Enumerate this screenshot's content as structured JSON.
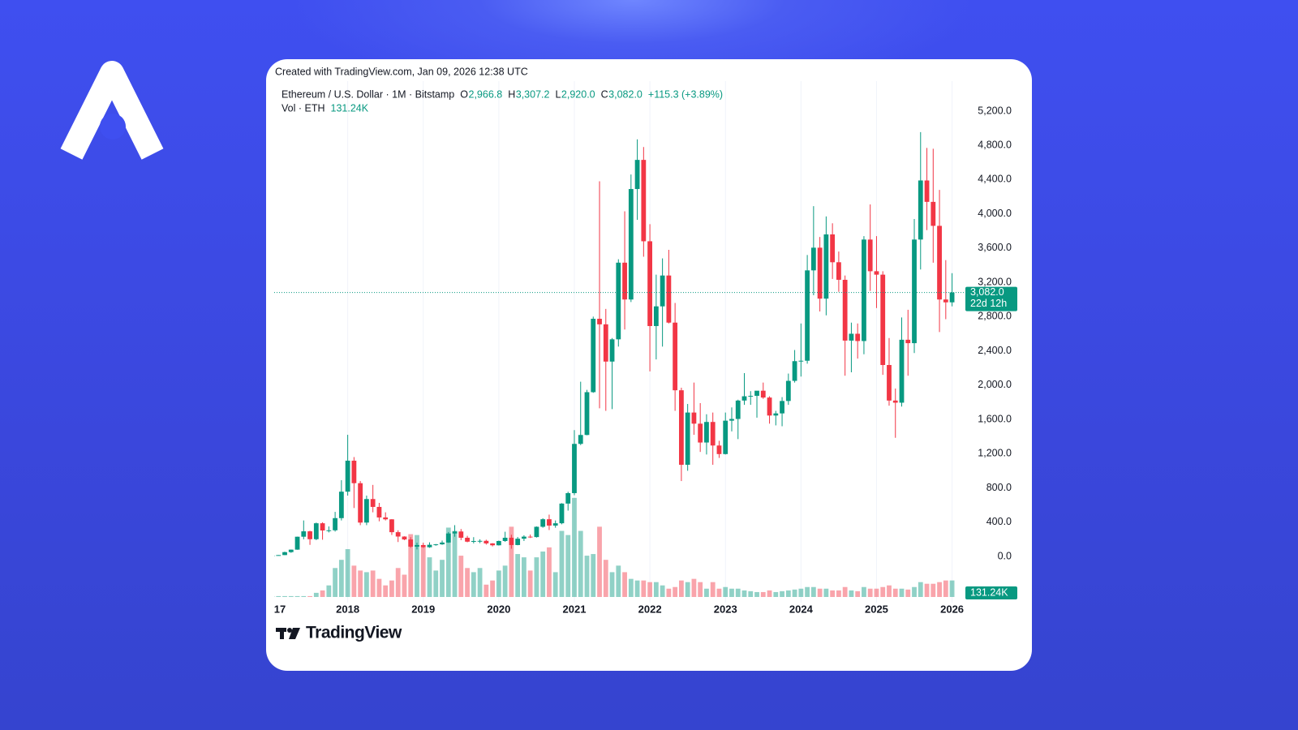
{
  "created_with": "Created with TradingView.com, Jan 09, 2026 12:38 UTC",
  "brand": "TradingView",
  "chart_data": {
    "type": "candlestick",
    "title": "Ethereum / U.S. Dollar · 1M · Bitstamp",
    "ohlc_keys": [
      "O",
      "H",
      "L",
      "C"
    ],
    "last_candle_labels": [
      "2,966.8",
      "3,307.2",
      "2,920.0",
      "3,082.0"
    ],
    "change_label": "+115.3 (+3.89%)",
    "volume_title": "Vol · ETH",
    "last_volume_label": "131.24K",
    "countdown": "22d 12h",
    "up_color": "#089981",
    "down_color": "#f23645",
    "grid": true,
    "categories": [
      "17",
      null,
      null,
      null,
      null,
      null,
      null,
      null,
      null,
      null,
      null,
      null,
      "2018",
      null,
      null,
      null,
      null,
      null,
      null,
      null,
      null,
      null,
      null,
      null,
      "2019",
      null,
      null,
      null,
      null,
      null,
      null,
      null,
      null,
      null,
      null,
      null,
      "2020",
      null,
      null,
      null,
      null,
      null,
      null,
      null,
      null,
      null,
      null,
      null,
      "2021",
      null,
      null,
      null,
      null,
      null,
      null,
      null,
      null,
      null,
      null,
      null,
      "2022",
      null,
      null,
      null,
      null,
      null,
      null,
      null,
      null,
      null,
      null,
      null,
      "2023",
      null,
      null,
      null,
      null,
      null,
      null,
      null,
      null,
      null,
      null,
      null,
      "2024",
      null,
      null,
      null,
      null,
      null,
      null,
      null,
      null,
      null,
      null,
      null,
      "2025",
      null,
      null,
      null,
      null,
      null,
      null,
      null,
      null,
      null,
      null,
      null,
      "2026"
    ],
    "open": [
      8,
      10.7,
      15.6,
      50,
      79,
      230,
      293,
      201,
      387,
      303,
      305,
      447,
      756,
      1118,
      855,
      395,
      670,
      578,
      455,
      433,
      283,
      232,
      198,
      114,
      133,
      107,
      136,
      141,
      162,
      268,
      291,
      218,
      172,
      180,
      182,
      152,
      130,
      180,
      218,
      133,
      207,
      231,
      226,
      346,
      434,
      360,
      387,
      617,
      739,
      1314,
      1418,
      1918,
      2775,
      2710,
      2275,
      2535,
      3430,
      3000,
      4290,
      4630,
      3680,
      2690,
      2920,
      3280,
      2730,
      1940,
      1070,
      1680,
      1550,
      1330,
      1570,
      1295,
      1195,
      1585,
      1605,
      1820,
      1870,
      1875,
      1935,
      1855,
      1645,
      1670,
      1815,
      2050,
      2280,
      2285,
      3340,
      3605,
      3010,
      3760,
      3435,
      3230,
      2520,
      2600,
      2515,
      3700,
      3330,
      3290,
      2235,
      1820,
      1795,
      2530,
      2490,
      3700,
      4390,
      4140,
      3860,
      3000,
      2966.8
    ],
    "high": [
      11,
      16,
      55,
      80,
      230,
      420,
      300,
      395,
      398,
      350,
      520,
      890,
      1420,
      1160,
      880,
      710,
      835,
      625,
      515,
      435,
      305,
      235,
      225,
      160,
      160,
      165,
      145,
      185,
      285,
      365,
      320,
      240,
      225,
      200,
      195,
      155,
      185,
      288,
      253,
      227,
      247,
      255,
      350,
      445,
      488,
      420,
      622,
      755,
      1475,
      2040,
      1945,
      2800,
      4380,
      2890,
      2550,
      3470,
      4030,
      4460,
      4870,
      4780,
      3880,
      3290,
      3480,
      3580,
      2960,
      1970,
      1780,
      2030,
      1790,
      1660,
      1680,
      1350,
      1680,
      1740,
      1830,
      2140,
      1930,
      1930,
      2030,
      1870,
      1700,
      1860,
      2135,
      2410,
      2720,
      3520,
      4090,
      3730,
      3970,
      3890,
      3560,
      3280,
      2730,
      2720,
      3740,
      4110,
      3740,
      3330,
      2550,
      1960,
      2790,
      2880,
      3940,
      4955,
      4770,
      4760,
      4280,
      3460,
      3307.2
    ],
    "low": [
      8,
      10.5,
      15,
      42,
      78,
      200,
      135,
      190,
      195,
      280,
      290,
      420,
      710,
      565,
      365,
      365,
      515,
      410,
      420,
      250,
      168,
      190,
      100,
      82,
      100,
      100,
      125,
      135,
      158,
      230,
      190,
      165,
      152,
      155,
      138,
      117,
      127,
      170,
      90,
      130,
      180,
      215,
      220,
      335,
      308,
      335,
      375,
      535,
      715,
      1300,
      1415,
      1910,
      1730,
      1700,
      1720,
      2450,
      2650,
      2970,
      3930,
      3500,
      2160,
      2300,
      2450,
      2720,
      1700,
      880,
      1000,
      1420,
      1220,
      1190,
      1070,
      1150,
      1190,
      1460,
      1370,
      1770,
      1770,
      1620,
      1840,
      1550,
      1530,
      1520,
      1770,
      2030,
      2100,
      2250,
      3050,
      2860,
      2815,
      3240,
      3090,
      2110,
      2150,
      2310,
      2360,
      3100,
      2900,
      2120,
      1760,
      1385,
      1750,
      2110,
      2375,
      3350,
      3810,
      3430,
      2620,
      2770,
      2920
    ],
    "close": [
      10.7,
      15.6,
      50,
      79,
      230,
      293,
      201,
      387,
      303,
      305,
      447,
      756,
      1118,
      855,
      395,
      670,
      578,
      455,
      433,
      283,
      232,
      198,
      114,
      133,
      107,
      136,
      141,
      162,
      268,
      291,
      218,
      172,
      180,
      182,
      152,
      130,
      180,
      218,
      133,
      207,
      231,
      226,
      346,
      434,
      360,
      387,
      617,
      739,
      1314,
      1418,
      1918,
      2775,
      2710,
      2275,
      2535,
      3430,
      3000,
      4290,
      4630,
      3680,
      2690,
      2920,
      3280,
      2730,
      1940,
      1070,
      1680,
      1550,
      1330,
      1570,
      1295,
      1195,
      1585,
      1605,
      1820,
      1870,
      1875,
      1935,
      1855,
      1645,
      1670,
      1815,
      2050,
      2280,
      2285,
      3340,
      3605,
      3010,
      3760,
      3435,
      3230,
      2520,
      2600,
      2515,
      3700,
      3330,
      3290,
      2235,
      1820,
      1795,
      2530,
      2490,
      3700,
      4390,
      4140,
      3860,
      3000,
      2966.8,
      3082
    ],
    "volume": [
      7000,
      7000,
      7000,
      7000,
      7000,
      7000,
      7000,
      33000,
      52000,
      92000,
      230000,
      295000,
      380000,
      249000,
      210000,
      197000,
      210000,
      144000,
      92000,
      131000,
      230000,
      177000,
      499000,
      492000,
      394000,
      315000,
      210000,
      295000,
      551000,
      525000,
      328000,
      230000,
      197000,
      230000,
      98000,
      131000,
      210000,
      249000,
      558000,
      341000,
      315000,
      210000,
      315000,
      361000,
      394000,
      197000,
      525000,
      492000,
      787000,
      525000,
      328000,
      341000,
      558000,
      295000,
      197000,
      249000,
      197000,
      144000,
      131000,
      131000,
      118000,
      118000,
      92000,
      66000,
      79000,
      131000,
      118000,
      144000,
      118000,
      66000,
      118000,
      66000,
      79000,
      66000,
      66000,
      52000,
      46000,
      39000,
      39000,
      52000,
      39000,
      46000,
      52000,
      59000,
      66000,
      79000,
      79000,
      66000,
      66000,
      52000,
      52000,
      79000,
      52000,
      46000,
      79000,
      66000,
      66000,
      79000,
      92000,
      66000,
      66000,
      59000,
      79000,
      118000,
      105000,
      105000,
      118000,
      131000,
      131240
    ],
    "ylim": [
      -540,
      5550
    ],
    "yticks": [
      {
        "value": 0,
        "label": "0.0"
      },
      {
        "value": 400,
        "label": "400.0"
      },
      {
        "value": 800,
        "label": "800.0"
      },
      {
        "value": 1200,
        "label": "1,200.0"
      },
      {
        "value": 1600,
        "label": "1,600.0"
      },
      {
        "value": 2000,
        "label": "2,000.0"
      },
      {
        "value": 2400,
        "label": "2,400.0"
      },
      {
        "value": 2800,
        "label": "2,800.0"
      },
      {
        "value": 3200,
        "label": "3,200.0"
      },
      {
        "value": 3600,
        "label": "3,600.0"
      },
      {
        "value": 4000,
        "label": "4,000.0"
      },
      {
        "value": 4400,
        "label": "4,400.0"
      },
      {
        "value": 4800,
        "label": "4,800.0"
      },
      {
        "value": 5200,
        "label": "5,200.0"
      }
    ]
  }
}
